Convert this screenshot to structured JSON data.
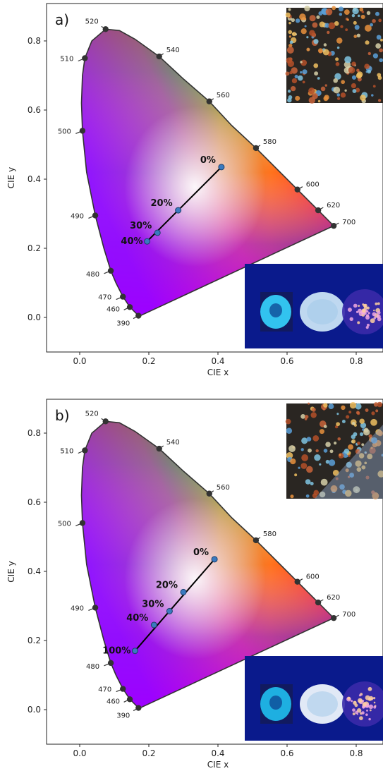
{
  "chart_data": [
    {
      "type": "scatter",
      "panel_label": "a)",
      "xlabel": "CIE x",
      "ylabel": "CIE y",
      "xlim": [
        -0.1,
        0.88
      ],
      "ylim": [
        -0.1,
        0.88
      ],
      "xticks": [
        "0.0",
        "0.2",
        "0.4",
        "0.6",
        "0.8"
      ],
      "yticks": [
        "0.0",
        "0.2",
        "0.4",
        "0.6",
        "0.8"
      ],
      "locus_wavelengths": [
        {
          "nm": "390",
          "x": 0.17,
          "y": 0.005
        },
        {
          "nm": "460",
          "x": 0.145,
          "y": 0.03
        },
        {
          "nm": "470",
          "x": 0.125,
          "y": 0.06
        },
        {
          "nm": "480",
          "x": 0.09,
          "y": 0.135
        },
        {
          "nm": "490",
          "x": 0.045,
          "y": 0.295
        },
        {
          "nm": "500",
          "x": 0.008,
          "y": 0.54
        },
        {
          "nm": "510",
          "x": 0.015,
          "y": 0.75
        },
        {
          "nm": "520",
          "x": 0.075,
          "y": 0.834
        },
        {
          "nm": "540",
          "x": 0.23,
          "y": 0.755
        },
        {
          "nm": "560",
          "x": 0.375,
          "y": 0.625
        },
        {
          "nm": "580",
          "x": 0.51,
          "y": 0.49
        },
        {
          "nm": "600",
          "x": 0.63,
          "y": 0.37
        },
        {
          "nm": "620",
          "x": 0.69,
          "y": 0.31
        },
        {
          "nm": "700",
          "x": 0.735,
          "y": 0.265
        }
      ],
      "series": [
        {
          "points": [
            {
              "label": "0%",
              "x": 0.41,
              "y": 0.435
            },
            {
              "label": "20%",
              "x": 0.285,
              "y": 0.31
            },
            {
              "label": "30%",
              "x": 0.225,
              "y": 0.245
            },
            {
              "label": "40%",
              "x": 0.195,
              "y": 0.22
            }
          ]
        }
      ]
    },
    {
      "type": "scatter",
      "panel_label": "b)",
      "xlabel": "CIE x",
      "ylabel": "CIE y",
      "xlim": [
        -0.1,
        0.88
      ],
      "ylim": [
        -0.1,
        0.88
      ],
      "xticks": [
        "0.0",
        "0.2",
        "0.4",
        "0.6",
        "0.8"
      ],
      "yticks": [
        "0.0",
        "0.2",
        "0.4",
        "0.6",
        "0.8"
      ],
      "locus_wavelengths": [
        {
          "nm": "390",
          "x": 0.17,
          "y": 0.005
        },
        {
          "nm": "460",
          "x": 0.145,
          "y": 0.03
        },
        {
          "nm": "470",
          "x": 0.125,
          "y": 0.06
        },
        {
          "nm": "480",
          "x": 0.09,
          "y": 0.135
        },
        {
          "nm": "490",
          "x": 0.045,
          "y": 0.295
        },
        {
          "nm": "500",
          "x": 0.008,
          "y": 0.54
        },
        {
          "nm": "510",
          "x": 0.015,
          "y": 0.75
        },
        {
          "nm": "520",
          "x": 0.075,
          "y": 0.834
        },
        {
          "nm": "540",
          "x": 0.23,
          "y": 0.755
        },
        {
          "nm": "560",
          "x": 0.375,
          "y": 0.625
        },
        {
          "nm": "580",
          "x": 0.51,
          "y": 0.49
        },
        {
          "nm": "600",
          "x": 0.63,
          "y": 0.37
        },
        {
          "nm": "620",
          "x": 0.69,
          "y": 0.31
        },
        {
          "nm": "700",
          "x": 0.735,
          "y": 0.265
        }
      ],
      "series": [
        {
          "points": [
            {
              "label": "0%",
              "x": 0.39,
              "y": 0.435
            },
            {
              "label": "20%",
              "x": 0.3,
              "y": 0.34
            },
            {
              "label": "30%",
              "x": 0.26,
              "y": 0.285
            },
            {
              "label": "40%",
              "x": 0.215,
              "y": 0.245
            },
            {
              "label": "100%",
              "x": 0.16,
              "y": 0.17
            }
          ]
        }
      ]
    }
  ]
}
